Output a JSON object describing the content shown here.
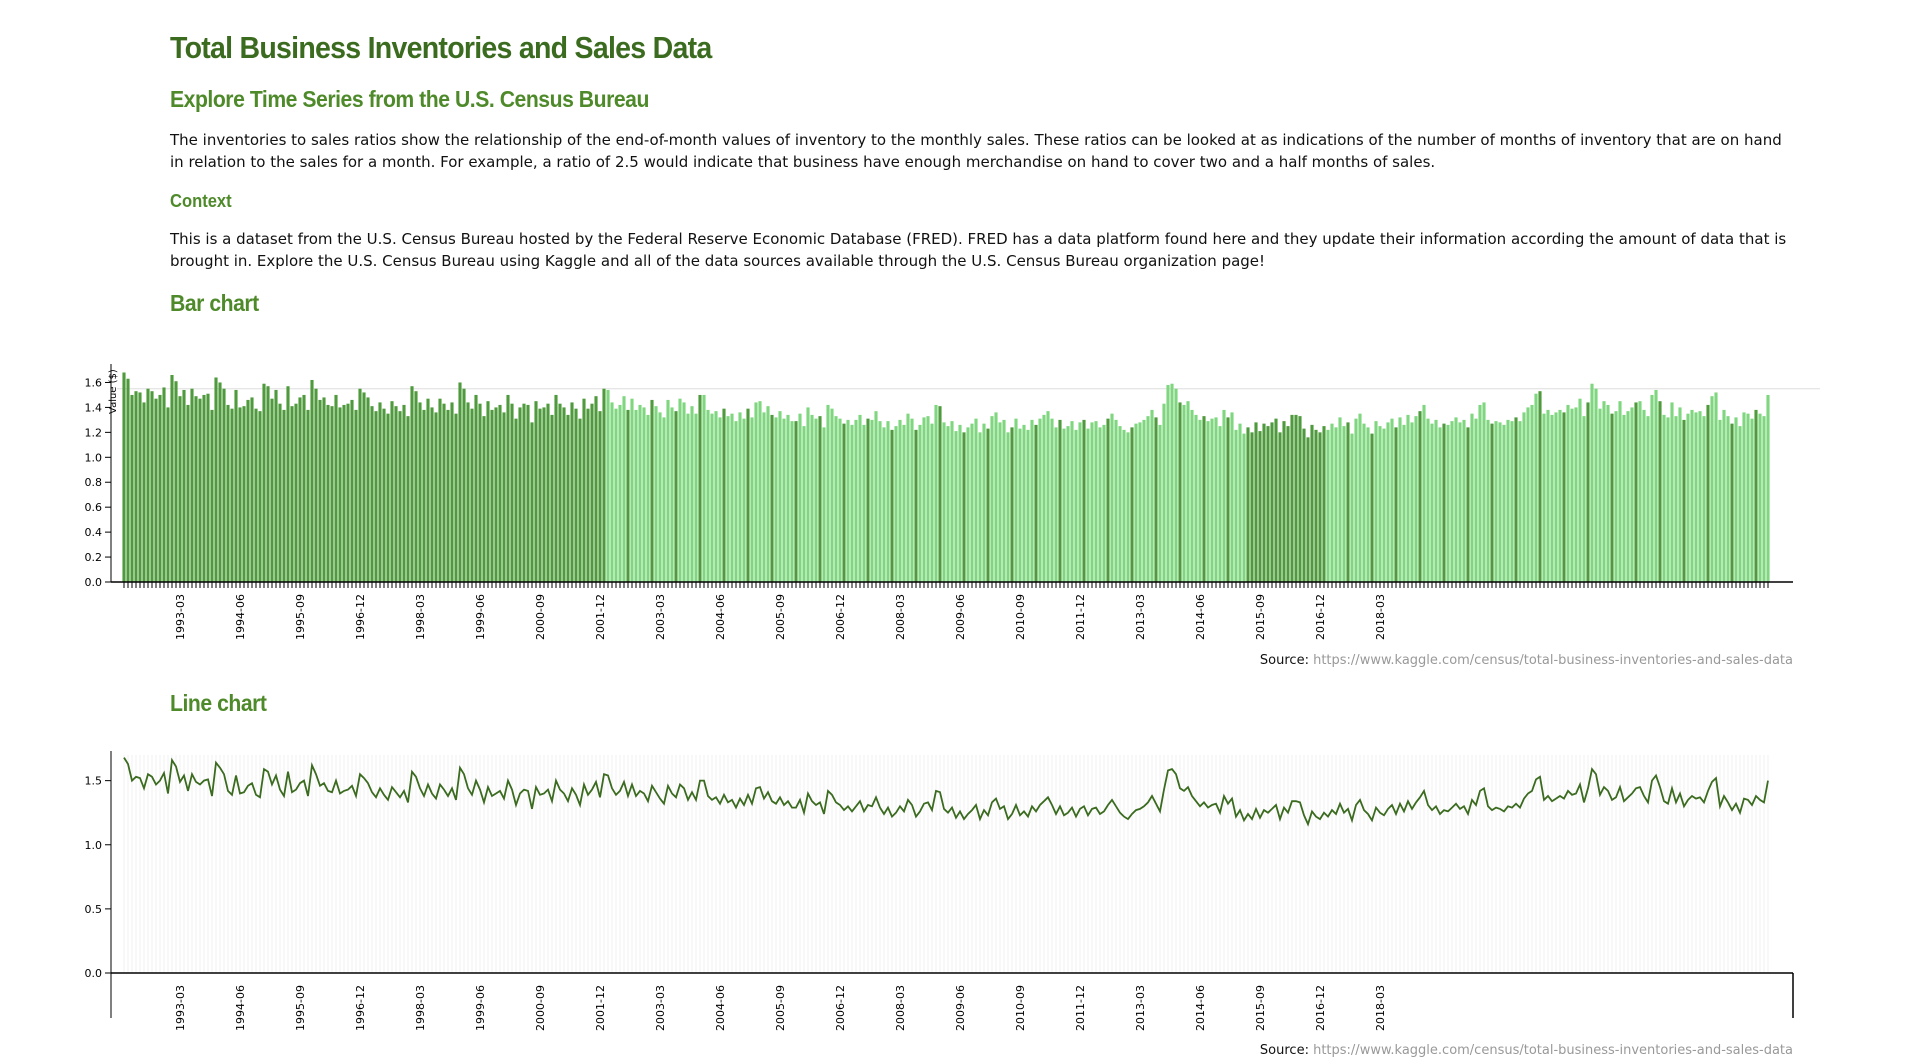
{
  "page": {
    "title": "Total Business Inventories and Sales Data",
    "subtitle": "Explore Time Series from the U.S. Census Bureau",
    "intro": "The inventories to sales ratios show the relationship of the end-of-month values of inventory to the monthly sales. These ratios can be looked at as indications of the number of months of inventory that are on hand in relation to the sales for a month. For example, a ratio of 2.5 would indicate that business have enough merchandise on hand to cover two and a half months of sales.",
    "context_heading": "Context",
    "context_text": "This is a dataset from the U.S. Census Bureau hosted by the Federal Reserve Economic Database (FRED). FRED has a data platform found here and they update their information according the amount of data that is brought in. Explore the U.S. Census Bureau using Kaggle and all of the data sources available through the U.S. Census Bureau organization page!",
    "bar_heading": "Bar chart",
    "line_heading": "Line chart",
    "source_label": "Source:",
    "source_url": "https://www.kaggle.com/census/total-business-inventories-and-sales-data"
  },
  "colors": {
    "title": "#3a6b1f",
    "heading": "#4e8a2a",
    "bar_dark": "#4e9a3c",
    "bar_light": "#7fd67f",
    "line": "#3a6b1f"
  },
  "chart_data": [
    {
      "type": "bar",
      "ylabel": "Value ($)",
      "ylim": [
        0,
        1.7
      ],
      "yticks": [
        "0.0",
        "0.2",
        "0.4",
        "0.6",
        "0.8",
        "1.0",
        "1.2",
        "1.4",
        "1.6"
      ],
      "x_start": "1992-01",
      "x_end": "2018-08",
      "xtick_labels": [
        "1993-03",
        "1994-06",
        "1995-09",
        "1996-12",
        "1998-03",
        "1999-06",
        "2000-09",
        "2001-12",
        "2003-03",
        "2004-06",
        "2005-09",
        "2006-12",
        "2008-03",
        "2009-06",
        "2010-09",
        "2011-12",
        "2013-03",
        "2014-06",
        "2015-09",
        "2016-12",
        "2018-03"
      ],
      "values": [
        1.68,
        1.63,
        1.5,
        1.53,
        1.52,
        1.44,
        1.55,
        1.53,
        1.47,
        1.5,
        1.56,
        1.4,
        1.66,
        1.61,
        1.49,
        1.54,
        1.42,
        1.55,
        1.49,
        1.47,
        1.5,
        1.51,
        1.38,
        1.64,
        1.6,
        1.55,
        1.42,
        1.39,
        1.54,
        1.4,
        1.41,
        1.46,
        1.48,
        1.39,
        1.37,
        1.59,
        1.57,
        1.47,
        1.54,
        1.43,
        1.38,
        1.57,
        1.41,
        1.43,
        1.48,
        1.5,
        1.38,
        1.62,
        1.55,
        1.46,
        1.48,
        1.42,
        1.41,
        1.5,
        1.4,
        1.42,
        1.43,
        1.46,
        1.38,
        1.55,
        1.52,
        1.48,
        1.41,
        1.37,
        1.44,
        1.39,
        1.35,
        1.45,
        1.41,
        1.37,
        1.42,
        1.33,
        1.57,
        1.53,
        1.44,
        1.38,
        1.47,
        1.4,
        1.36,
        1.47,
        1.43,
        1.38,
        1.44,
        1.35,
        1.6,
        1.55,
        1.44,
        1.39,
        1.5,
        1.43,
        1.33,
        1.45,
        1.38,
        1.4,
        1.42,
        1.36,
        1.5,
        1.43,
        1.31,
        1.4,
        1.43,
        1.42,
        1.28,
        1.45,
        1.39,
        1.4,
        1.43,
        1.34,
        1.5,
        1.43,
        1.4,
        1.34,
        1.44,
        1.39,
        1.31,
        1.47,
        1.39,
        1.43,
        1.49,
        1.37,
        1.55,
        1.54,
        1.44,
        1.39,
        1.42,
        1.49,
        1.38,
        1.47,
        1.38,
        1.42,
        1.4,
        1.34,
        1.46,
        1.41,
        1.36,
        1.32,
        1.46,
        1.4,
        1.37,
        1.47,
        1.44,
        1.35,
        1.41,
        1.35,
        1.5,
        1.5,
        1.38,
        1.35,
        1.37,
        1.32,
        1.39,
        1.33,
        1.35,
        1.29,
        1.36,
        1.31,
        1.39,
        1.32,
        1.44,
        1.45,
        1.36,
        1.41,
        1.34,
        1.32,
        1.37,
        1.31,
        1.34,
        1.29,
        1.29,
        1.35,
        1.25,
        1.4,
        1.34,
        1.31,
        1.33,
        1.24,
        1.42,
        1.39,
        1.33,
        1.31,
        1.27,
        1.3,
        1.26,
        1.3,
        1.34,
        1.26,
        1.31,
        1.3,
        1.37,
        1.29,
        1.24,
        1.29,
        1.22,
        1.25,
        1.3,
        1.26,
        1.35,
        1.31,
        1.22,
        1.26,
        1.32,
        1.33,
        1.27,
        1.42,
        1.41,
        1.28,
        1.25,
        1.29,
        1.21,
        1.26,
        1.2,
        1.24,
        1.27,
        1.31,
        1.2,
        1.27,
        1.23,
        1.33,
        1.36,
        1.28,
        1.3,
        1.2,
        1.24,
        1.31,
        1.23,
        1.26,
        1.22,
        1.3,
        1.26,
        1.31,
        1.34,
        1.37,
        1.31,
        1.24,
        1.3,
        1.23,
        1.25,
        1.29,
        1.22,
        1.28,
        1.3,
        1.23,
        1.28,
        1.29,
        1.24,
        1.26,
        1.31,
        1.35,
        1.3,
        1.25,
        1.22,
        1.2,
        1.24,
        1.27,
        1.28,
        1.3,
        1.33,
        1.38,
        1.32,
        1.26,
        1.43,
        1.58,
        1.59,
        1.55,
        1.44,
        1.42,
        1.45,
        1.38,
        1.34,
        1.3,
        1.33,
        1.29,
        1.31,
        1.32,
        1.25,
        1.38,
        1.32,
        1.36,
        1.22,
        1.27,
        1.19,
        1.24,
        1.2,
        1.28,
        1.21,
        1.27,
        1.25,
        1.28,
        1.31,
        1.2,
        1.29,
        1.25,
        1.34,
        1.34,
        1.33,
        1.23,
        1.16,
        1.26,
        1.22,
        1.2,
        1.25,
        1.22,
        1.27,
        1.24,
        1.32,
        1.25,
        1.28,
        1.19,
        1.31,
        1.35,
        1.27,
        1.24,
        1.19,
        1.29,
        1.25,
        1.23,
        1.28,
        1.31,
        1.24,
        1.32,
        1.26,
        1.34,
        1.28,
        1.33,
        1.37,
        1.42,
        1.31,
        1.27,
        1.3,
        1.24,
        1.27,
        1.26,
        1.29,
        1.32,
        1.28,
        1.3,
        1.24,
        1.35,
        1.31,
        1.42,
        1.44,
        1.3,
        1.27,
        1.29,
        1.28,
        1.26,
        1.3,
        1.29,
        1.32,
        1.29,
        1.36,
        1.4,
        1.42,
        1.51,
        1.53,
        1.35,
        1.38,
        1.34,
        1.36,
        1.38,
        1.36,
        1.42,
        1.39,
        1.4,
        1.47,
        1.33,
        1.44,
        1.59,
        1.55,
        1.39,
        1.45,
        1.42,
        1.35,
        1.37,
        1.45,
        1.34,
        1.37,
        1.4,
        1.44,
        1.45,
        1.38,
        1.33,
        1.5,
        1.54,
        1.45,
        1.34,
        1.32,
        1.44,
        1.33,
        1.4,
        1.3,
        1.35,
        1.38,
        1.36,
        1.37,
        1.33,
        1.42,
        1.49,
        1.52,
        1.3,
        1.38,
        1.33,
        1.27,
        1.32,
        1.25,
        1.36,
        1.35,
        1.31,
        1.38,
        1.35,
        1.33,
        1.5
      ],
      "bar_highlight_dark": [
        0,
        1,
        2,
        3,
        4,
        5,
        6,
        7,
        8,
        9,
        10,
        11,
        12,
        13,
        14,
        15,
        16,
        17,
        18,
        19,
        20,
        21,
        22,
        23,
        24,
        25,
        26,
        27,
        28,
        29,
        30,
        31,
        32,
        33,
        34,
        35,
        36,
        37,
        38,
        39,
        40,
        41,
        42,
        43,
        44,
        45,
        46,
        47,
        48,
        49,
        50,
        51,
        52,
        53,
        54,
        55,
        56,
        57,
        58,
        59,
        60,
        61,
        62,
        63,
        64,
        65,
        66,
        67,
        68,
        69,
        70,
        71,
        72,
        73,
        74,
        75,
        76,
        77,
        78,
        79,
        80,
        81,
        82,
        83,
        84,
        85,
        86,
        87,
        88,
        89,
        90,
        91,
        92,
        93,
        94,
        95,
        96,
        97,
        98,
        99,
        100,
        101,
        102,
        103,
        104,
        105,
        106,
        107,
        108,
        109,
        110,
        111,
        112,
        113,
        114,
        115,
        116,
        117,
        118,
        119
      ]
    },
    {
      "type": "line",
      "ylim": [
        0,
        1.7
      ],
      "yticks": [
        "0.0",
        "0.5",
        "1.0",
        "1.5"
      ],
      "xtick_labels": [
        "1993-03",
        "1994-06",
        "1995-09",
        "1996-12",
        "1998-03",
        "1999-06",
        "2000-09",
        "2001-12",
        "2003-03",
        "2004-06",
        "2005-09",
        "2006-12",
        "2008-03",
        "2009-06",
        "2010-09",
        "2011-12",
        "2013-03",
        "2014-06",
        "2015-09",
        "2016-12",
        "2018-03"
      ]
    }
  ]
}
